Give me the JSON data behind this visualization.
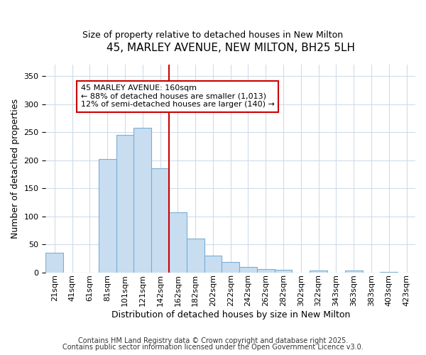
{
  "title": "45, MARLEY AVENUE, NEW MILTON, BH25 5LH",
  "subtitle": "Size of property relative to detached houses in New Milton",
  "xlabel": "Distribution of detached houses by size in New Milton",
  "ylabel": "Number of detached properties",
  "bar_color": "#c8ddf0",
  "bar_edge_color": "#7aafd4",
  "vline_color": "#cc0000",
  "vline_x_index": 7,
  "annotation_line1": "45 MARLEY AVENUE: 160sqm",
  "annotation_line2": "← 88% of detached houses are smaller (1,013)",
  "annotation_line3": "12% of semi-detached houses are larger (140) →",
  "annotation_box_color": "#ffffff",
  "annotation_box_edge": "#cc0000",
  "categories": [
    "21sqm",
    "41sqm",
    "61sqm",
    "81sqm",
    "101sqm",
    "121sqm",
    "142sqm",
    "162sqm",
    "182sqm",
    "202sqm",
    "222sqm",
    "242sqm",
    "262sqm",
    "282sqm",
    "302sqm",
    "322sqm",
    "343sqm",
    "363sqm",
    "383sqm",
    "403sqm",
    "423sqm"
  ],
  "values": [
    35,
    0,
    0,
    202,
    245,
    258,
    185,
    107,
    60,
    30,
    19,
    10,
    6,
    5,
    0,
    3,
    0,
    3,
    0,
    1,
    0
  ],
  "ylim": [
    0,
    370
  ],
  "yticks": [
    0,
    50,
    100,
    150,
    200,
    250,
    300,
    350
  ],
  "footer_line1": "Contains HM Land Registry data © Crown copyright and database right 2025.",
  "footer_line2": "Contains public sector information licensed under the Open Government Licence v3.0.",
  "background_color": "#ffffff",
  "plot_bg_color": "#ffffff",
  "grid_color": "#d0dce8",
  "title_fontsize": 11,
  "subtitle_fontsize": 9,
  "axis_label_fontsize": 9,
  "tick_fontsize": 8,
  "footer_fontsize": 7,
  "annotation_fontsize": 8
}
